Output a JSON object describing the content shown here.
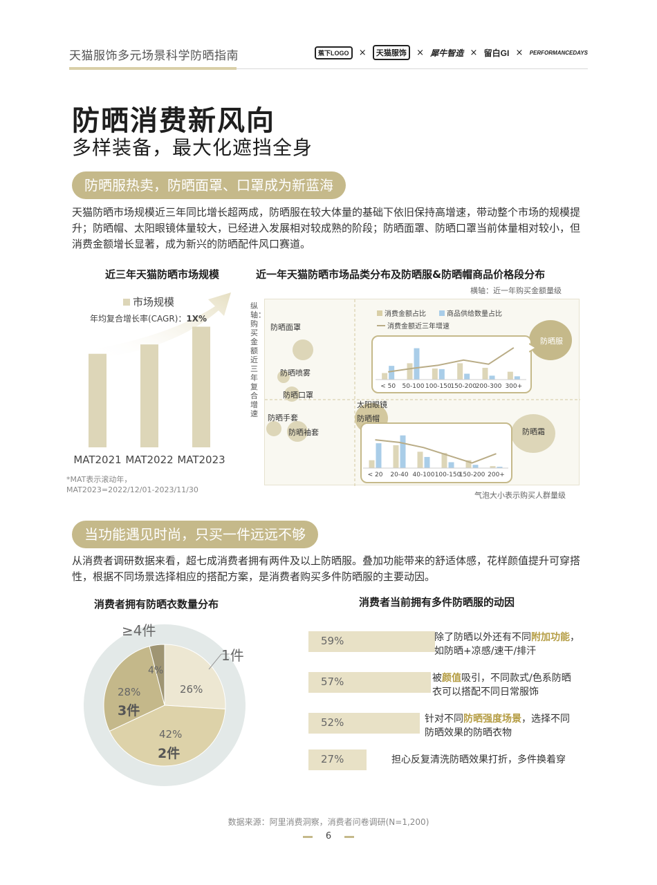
{
  "header": {
    "doc_title": "天猫服饰多元场景科学防晒指南",
    "partners": [
      "蕉下LOGO",
      "天猫服饰",
      "犀牛智造",
      "留白GI",
      "PERFORMANCEDAYS"
    ],
    "cross": "×"
  },
  "title": "防晒消费新风向",
  "subtitle": "多样装备，最大化遮挡全身",
  "section1": {
    "pill": "防晒服热卖，防晒面罩、口罩成为新蓝海",
    "paragraph": "天猫防晒市场规模近三年同比增长超两成，防晒服在较大体量的基础下依旧保持高增速，带动整个市场的规模提升；防晒帽、太阳眼镜体量较大，已经进入发展相对较成熟的阶段；防晒面罩、防晒口罩当前体量相对较小，但消费金额增长显著，成为新兴的防晒配件风口赛道。"
  },
  "chart1": {
    "title": "近三年天猫防晒市场规模",
    "legend": "市场规模",
    "cagr_label": "年均复合增长率(CAGR)：",
    "cagr_value": "1X%",
    "note": "*MAT表示滚动年，\nMAT2023=2022/12/01-2023/11/30"
  },
  "chart2": {
    "title": "近一年天猫防晒市场品类分布及防晒服&防晒帽商品价格段分布",
    "x_axis_note": "横轴：近一年购买金额量级",
    "y_axis_label": "纵轴：购买金额近三年复合增速",
    "size_note": "气泡大小表示购买人群量级",
    "legend": [
      "消费金额占比",
      "商品供给数量占比",
      "消费金额近三年增速"
    ],
    "bubbles": [
      "防晒面罩",
      "防晒喷雾",
      "防晒口罩",
      "防晒手套",
      "防晒袖套",
      "太阳眼镜",
      "防晒帽",
      "防晒服",
      "防晒霜"
    ]
  },
  "section2": {
    "pill": "当功能遇见时尚，只买一件远远不够",
    "paragraph": "从消费者调研数据来看，超七成消费者拥有两件及以上防晒服。叠加功能带来的舒适体感，花样颜值提升可穿搭性，根据不同场景选择相应的搭配方案，是消费者购买多件防晒服的主要动因。"
  },
  "chart3": {
    "title": "消费者拥有防晒衣数量分布",
    "pct_labels": [
      "26%",
      "42%",
      "28%",
      "4%"
    ],
    "count_labels": [
      "2件",
      "3件"
    ],
    "outer_labels": [
      "1件",
      "≥4件"
    ]
  },
  "chart4": {
    "title": "消费者当前拥有多件防晒服的动因",
    "items": [
      {
        "pct": "59%",
        "t1": "除了防晒以外还有不同",
        "hl": "附加功能",
        "t2": "，",
        "line2": "如防晒+凉感/速干/排汗"
      },
      {
        "pct": "57%",
        "t1": "被",
        "hl": "颜值",
        "t2": "吸引，不同款式/色系防晒",
        "line2": "衣可以搭配不同日常服饰"
      },
      {
        "pct": "52%",
        "t1": "针对不同",
        "hl": "防晒强度场景",
        "t2": "，选择不同",
        "line2": "防晒效果的防晒衣物"
      },
      {
        "pct": "27%",
        "t1": "担心反复清洗防晒效果打折，多件换着穿",
        "hl": "",
        "t2": "",
        "line2": ""
      }
    ]
  },
  "chart_data": [
    {
      "type": "bar",
      "title": "近三年天猫防晒市场规模",
      "categories": [
        "MAT2021",
        "MAT2022",
        "MAT2023"
      ],
      "series": [
        {
          "name": "市场规模",
          "values": [
            100,
            110,
            129
          ]
        }
      ],
      "ylim": [
        0,
        170
      ]
    },
    {
      "type": "bar",
      "title": "防晒服价格段分布",
      "categories": [
        "< 50",
        "50-100",
        "100-150",
        "150-200",
        "200-300",
        "300+"
      ],
      "series": [
        {
          "name": "消费金额占比",
          "values": [
            10,
            25,
            17,
            25,
            18,
            12
          ]
        },
        {
          "name": "商品供给数量占比",
          "values": [
            21,
            48,
            16,
            9,
            6,
            5
          ]
        },
        {
          "name": "消费金额近三年增速",
          "values": [
            15,
            22,
            28,
            38,
            30,
            62
          ]
        }
      ]
    },
    {
      "type": "bar",
      "title": "防晒帽价格段分布",
      "categories": [
        "< 20",
        "20-40",
        "40-100",
        "100-150",
        "150-200",
        "200+"
      ],
      "series": [
        {
          "name": "消费金额占比",
          "values": [
            12,
            35,
            25,
            23,
            12,
            3
          ]
        },
        {
          "name": "商品供给数量占比",
          "values": [
            38,
            50,
            17,
            9,
            5,
            2
          ]
        },
        {
          "name": "消费金额近三年增速",
          "values": [
            55,
            50,
            40,
            25,
            10,
            28
          ]
        }
      ]
    },
    {
      "type": "pie",
      "title": "消费者拥有防晒衣数量分布",
      "labels": [
        "1件",
        "2件",
        "3件",
        "≥4件"
      ],
      "values": [
        26,
        42,
        28,
        4
      ]
    },
    {
      "type": "bar",
      "title": "消费者当前拥有多件防晒服的动因",
      "values": [
        59,
        57,
        52,
        27
      ]
    }
  ]
}
